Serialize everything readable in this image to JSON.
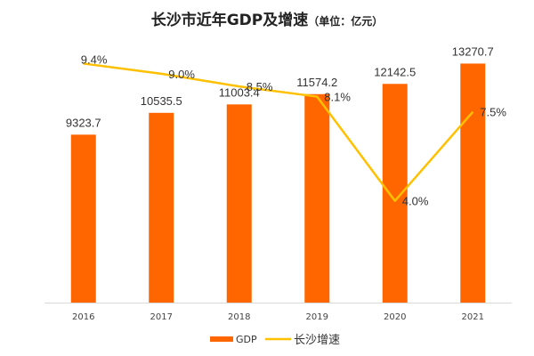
{
  "chart_data": {
    "type": "bar",
    "title": "长沙市近年GDP及增速",
    "unit": "（单位：亿元）",
    "categories": [
      "2016",
      "2017",
      "2018",
      "2019",
      "2020",
      "2021"
    ],
    "series": [
      {
        "name": "GDP",
        "type": "bar",
        "axis": "left",
        "color": "#FF6600",
        "values": [
          9323.7,
          10535.5,
          11003.4,
          11574.2,
          12142.5,
          13270.7
        ],
        "labels": [
          "9323.7",
          "10535.5",
          "11003.4",
          "11574.2",
          "12142.5",
          "13270.7"
        ]
      },
      {
        "name": "长沙增速",
        "type": "line",
        "axis": "right",
        "color": "#FFC000",
        "values": [
          9.4,
          9.0,
          8.5,
          8.1,
          4.0,
          7.5
        ],
        "labels": [
          "9.4%",
          "9.0%",
          "8.5%",
          "8.1%",
          "4.0%",
          "7.5%"
        ]
      }
    ],
    "ylim_left": [
      0,
      16800
    ],
    "ylim_right": [
      0,
      11.9
    ],
    "grid": false,
    "legend": "bottom"
  }
}
